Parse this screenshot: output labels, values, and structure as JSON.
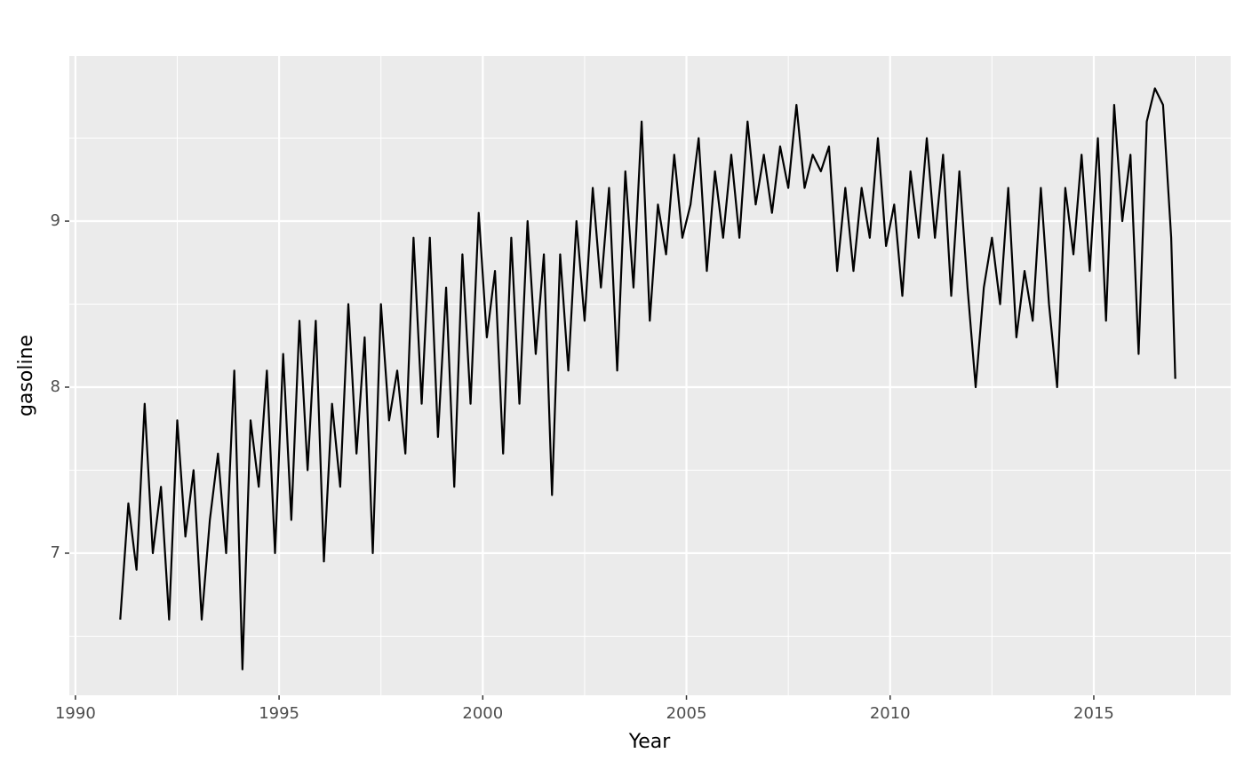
{
  "chart_data": {
    "type": "line",
    "x_label": "Year",
    "y_label": "gasoline",
    "series": [
      {
        "name": "gasoline",
        "color": "#000000",
        "x": [
          1991.1,
          1991.3,
          1991.5,
          1991.7,
          1991.9,
          1992.1,
          1992.3,
          1992.5,
          1992.7,
          1992.9,
          1993.1,
          1993.3,
          1993.5,
          1993.7,
          1993.9,
          1994.1,
          1994.3,
          1994.5,
          1994.7,
          1994.9,
          1995.1,
          1995.3,
          1995.5,
          1995.7,
          1995.9,
          1996.1,
          1996.3,
          1996.5,
          1996.7,
          1996.9,
          1997.1,
          1997.3,
          1997.5,
          1997.7,
          1997.9,
          1998.1,
          1998.3,
          1998.5,
          1998.7,
          1998.9,
          1999.1,
          1999.3,
          1999.5,
          1999.7,
          1999.9,
          2000.1,
          2000.3,
          2000.5,
          2000.7,
          2000.9,
          2001.1,
          2001.3,
          2001.5,
          2001.7,
          2001.9,
          2002.1,
          2002.3,
          2002.5,
          2002.7,
          2002.9,
          2003.1,
          2003.3,
          2003.5,
          2003.7,
          2003.9,
          2004.1,
          2004.3,
          2004.5,
          2004.7,
          2004.9,
          2005.1,
          2005.3,
          2005.5,
          2005.7,
          2005.9,
          2006.1,
          2006.3,
          2006.5,
          2006.7,
          2006.9,
          2007.1,
          2007.3,
          2007.5,
          2007.7,
          2007.9,
          2008.1,
          2008.3,
          2008.5,
          2008.7,
          2008.9,
          2009.1,
          2009.3,
          2009.5,
          2009.7,
          2009.9,
          2010.1,
          2010.3,
          2010.5,
          2010.7,
          2010.9,
          2011.1,
          2011.3,
          2011.5,
          2011.7,
          2011.9,
          2012.1,
          2012.3,
          2012.5,
          2012.7,
          2012.9,
          2013.1,
          2013.3,
          2013.5,
          2013.7,
          2013.9,
          2014.1,
          2014.3,
          2014.5,
          2014.7,
          2014.9,
          2015.1,
          2015.3,
          2015.5,
          2015.7,
          2015.9,
          2016.1,
          2016.3,
          2016.5,
          2016.7,
          2016.9,
          2017.0
        ],
        "values": [
          6.6,
          7.3,
          6.9,
          7.9,
          7.0,
          7.4,
          6.6,
          7.8,
          7.1,
          7.5,
          6.6,
          7.2,
          7.6,
          7.0,
          8.1,
          6.3,
          7.8,
          7.4,
          8.1,
          7.0,
          8.2,
          7.2,
          8.4,
          7.5,
          8.4,
          6.95,
          7.9,
          7.4,
          8.5,
          7.6,
          8.3,
          7.0,
          8.5,
          7.8,
          8.1,
          7.6,
          8.9,
          7.9,
          8.9,
          7.7,
          8.6,
          7.4,
          8.8,
          7.9,
          9.05,
          8.3,
          8.7,
          7.6,
          8.9,
          7.9,
          9.0,
          8.2,
          8.8,
          7.35,
          8.8,
          8.1,
          9.0,
          8.4,
          9.2,
          8.6,
          9.2,
          8.1,
          9.3,
          8.6,
          9.6,
          8.4,
          9.1,
          8.8,
          9.4,
          8.9,
          9.1,
          9.5,
          8.7,
          9.3,
          8.9,
          9.4,
          8.9,
          9.6,
          9.1,
          9.4,
          9.05,
          9.45,
          9.2,
          9.7,
          9.2,
          9.4,
          9.3,
          9.45,
          8.7,
          9.2,
          8.7,
          9.2,
          8.9,
          9.5,
          8.85,
          9.1,
          8.55,
          9.3,
          8.9,
          9.5,
          8.9,
          9.4,
          8.55,
          9.3,
          8.6,
          8.0,
          8.6,
          8.9,
          8.5,
          9.2,
          8.3,
          8.7,
          8.4,
          9.2,
          8.5,
          8.0,
          9.2,
          8.8,
          9.4,
          8.7,
          9.5,
          8.4,
          9.7,
          9.0,
          9.4,
          8.2,
          9.6,
          9.8,
          9.7,
          8.9,
          8.05
        ]
      }
    ],
    "xlim": [
      1989.85,
      2018.36
    ],
    "xticks": [
      1990,
      1995,
      2000,
      2005,
      2010,
      2015
    ],
    "ylim": [
      6.144,
      9.995
    ],
    "yticks": [
      7,
      8,
      9
    ],
    "grid": true
  }
}
